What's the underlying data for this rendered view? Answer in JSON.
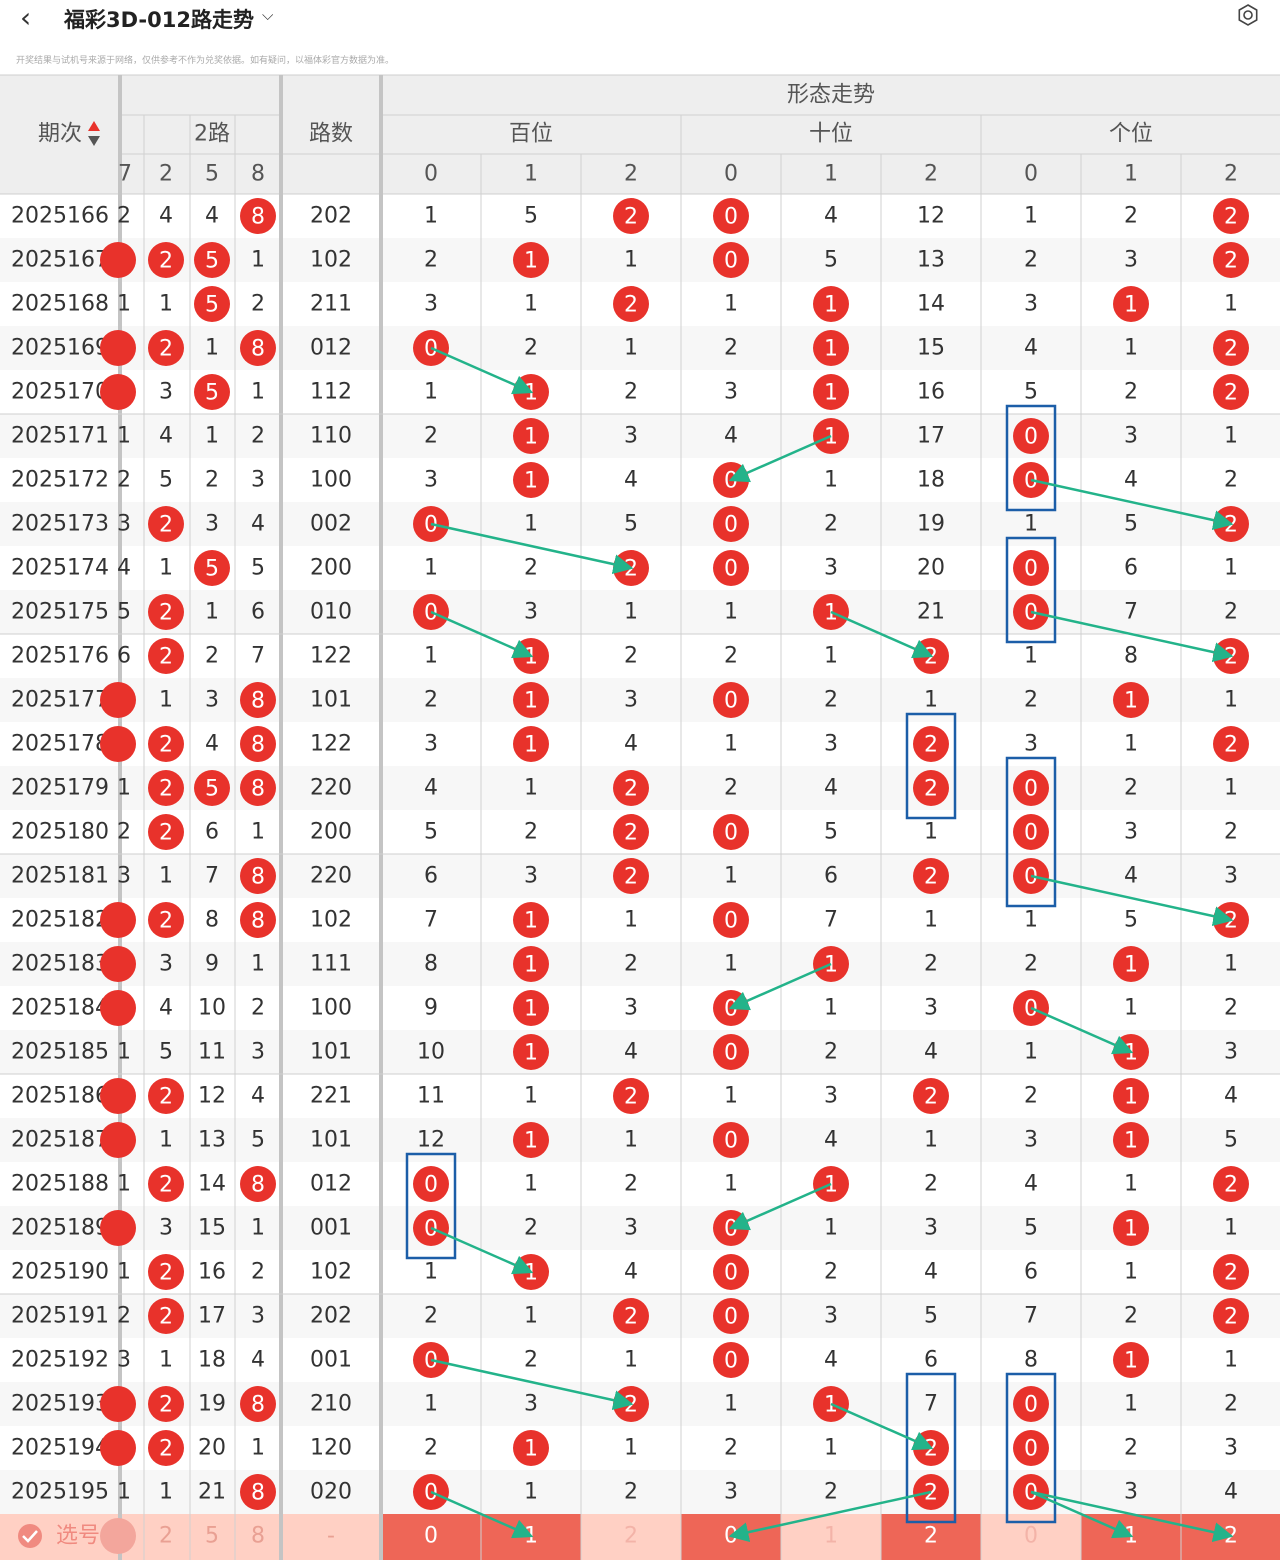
{
  "header": {
    "back_icon": "chevron-left-icon",
    "title": "福彩3D-012路走势",
    "title_dropdown_icon": "chevron-down-icon",
    "settings_icon": "settings-icon"
  },
  "disclaimer": "开奖结果与试机号来源于网络，仅供参考不作为兑奖依据。如有疑问，以福体彩官方数据为准。",
  "table": {
    "period_header": "期次",
    "sort_icon": "sort-icon",
    "group_2lu": "2路",
    "group_2lu_cols": [
      "2",
      "5",
      "8"
    ],
    "lushu_header": "路数",
    "trend_header": "形态走势",
    "positions": [
      "百位",
      "十位",
      "个位"
    ],
    "digit_cols": [
      "0",
      "1",
      "2"
    ],
    "partial_col_header": "7",
    "rows": [
      {
        "p": "2025166",
        "e": "2",
        "a": [
          "4",
          "4",
          "8"
        ],
        "r": "202",
        "b": [
          "1",
          "5",
          "2"
        ],
        "s": [
          "0",
          "4",
          "12"
        ],
        "g": [
          "1",
          "2",
          "2"
        ]
      },
      {
        "p": "2025167",
        "e": "7",
        "a": [
          "2",
          "5",
          "1"
        ],
        "r": "102",
        "b": [
          "2",
          "1",
          "1"
        ],
        "s": [
          "0",
          "5",
          "13"
        ],
        "g": [
          "2",
          "3",
          "2"
        ]
      },
      {
        "p": "2025168",
        "e": "1",
        "a": [
          "1",
          "5",
          "2"
        ],
        "r": "211",
        "b": [
          "3",
          "1",
          "2"
        ],
        "s": [
          "1",
          "1",
          "14"
        ],
        "g": [
          "3",
          "1",
          "1"
        ]
      },
      {
        "p": "2025169",
        "e": "7",
        "a": [
          "2",
          "1",
          "8"
        ],
        "r": "012",
        "b": [
          "0",
          "2",
          "1"
        ],
        "s": [
          "2",
          "1",
          "15"
        ],
        "g": [
          "4",
          "1",
          "2"
        ]
      },
      {
        "p": "2025170",
        "e": "7",
        "a": [
          "3",
          "5",
          "1"
        ],
        "r": "112",
        "b": [
          "1",
          "1",
          "2"
        ],
        "s": [
          "3",
          "1",
          "16"
        ],
        "g": [
          "5",
          "2",
          "2"
        ]
      },
      {
        "p": "2025171",
        "e": "1",
        "a": [
          "4",
          "1",
          "2"
        ],
        "r": "110",
        "b": [
          "2",
          "1",
          "3"
        ],
        "s": [
          "4",
          "1",
          "17"
        ],
        "g": [
          "0",
          "3",
          "1"
        ]
      },
      {
        "p": "2025172",
        "e": "2",
        "a": [
          "5",
          "2",
          "3"
        ],
        "r": "100",
        "b": [
          "3",
          "1",
          "4"
        ],
        "s": [
          "0",
          "1",
          "18"
        ],
        "g": [
          "0",
          "4",
          "2"
        ]
      },
      {
        "p": "2025173",
        "e": "3",
        "a": [
          "2",
          "3",
          "4"
        ],
        "r": "002",
        "b": [
          "0",
          "1",
          "5"
        ],
        "s": [
          "0",
          "2",
          "19"
        ],
        "g": [
          "1",
          "5",
          "2"
        ]
      },
      {
        "p": "2025174",
        "e": "4",
        "a": [
          "1",
          "5",
          "5"
        ],
        "r": "200",
        "b": [
          "1",
          "2",
          "2"
        ],
        "s": [
          "0",
          "3",
          "20"
        ],
        "g": [
          "0",
          "6",
          "1"
        ]
      },
      {
        "p": "2025175",
        "e": "5",
        "a": [
          "2",
          "1",
          "6"
        ],
        "r": "010",
        "b": [
          "0",
          "3",
          "1"
        ],
        "s": [
          "1",
          "1",
          "21"
        ],
        "g": [
          "0",
          "7",
          "2"
        ]
      },
      {
        "p": "2025176",
        "e": "6",
        "a": [
          "2",
          "2",
          "7"
        ],
        "r": "122",
        "b": [
          "1",
          "1",
          "2"
        ],
        "s": [
          "2",
          "1",
          "2"
        ],
        "g": [
          "1",
          "8",
          "2"
        ]
      },
      {
        "p": "2025177",
        "e": "7",
        "a": [
          "1",
          "3",
          "8"
        ],
        "r": "101",
        "b": [
          "2",
          "1",
          "3"
        ],
        "s": [
          "0",
          "2",
          "1"
        ],
        "g": [
          "2",
          "1",
          "1"
        ]
      },
      {
        "p": "2025178",
        "e": "7",
        "a": [
          "2",
          "4",
          "8"
        ],
        "r": "122",
        "b": [
          "3",
          "1",
          "4"
        ],
        "s": [
          "1",
          "3",
          "2"
        ],
        "g": [
          "3",
          "1",
          "2"
        ]
      },
      {
        "p": "2025179",
        "e": "1",
        "a": [
          "2",
          "5",
          "8"
        ],
        "r": "220",
        "b": [
          "4",
          "1",
          "2"
        ],
        "s": [
          "2",
          "4",
          "2"
        ],
        "g": [
          "0",
          "2",
          "1"
        ]
      },
      {
        "p": "2025180",
        "e": "2",
        "a": [
          "2",
          "6",
          "1"
        ],
        "r": "200",
        "b": [
          "5",
          "2",
          "2"
        ],
        "s": [
          "0",
          "5",
          "1"
        ],
        "g": [
          "0",
          "3",
          "2"
        ]
      },
      {
        "p": "2025181",
        "e": "3",
        "a": [
          "1",
          "7",
          "8"
        ],
        "r": "220",
        "b": [
          "6",
          "3",
          "2"
        ],
        "s": [
          "1",
          "6",
          "2"
        ],
        "g": [
          "0",
          "4",
          "3"
        ]
      },
      {
        "p": "2025182",
        "e": "7",
        "a": [
          "2",
          "8",
          "8"
        ],
        "r": "102",
        "b": [
          "7",
          "1",
          "1"
        ],
        "s": [
          "0",
          "7",
          "1"
        ],
        "g": [
          "1",
          "5",
          "2"
        ]
      },
      {
        "p": "2025183",
        "e": "7",
        "a": [
          "3",
          "9",
          "1"
        ],
        "r": "111",
        "b": [
          "8",
          "1",
          "2"
        ],
        "s": [
          "1",
          "1",
          "2"
        ],
        "g": [
          "2",
          "1",
          "1"
        ]
      },
      {
        "p": "2025184",
        "e": "7",
        "a": [
          "4",
          "10",
          "2"
        ],
        "r": "100",
        "b": [
          "9",
          "1",
          "3"
        ],
        "s": [
          "0",
          "1",
          "3"
        ],
        "g": [
          "0",
          "1",
          "2"
        ]
      },
      {
        "p": "2025185",
        "e": "1",
        "a": [
          "5",
          "11",
          "3"
        ],
        "r": "101",
        "b": [
          "10",
          "1",
          "4"
        ],
        "s": [
          "0",
          "2",
          "4"
        ],
        "g": [
          "1",
          "1",
          "3"
        ]
      },
      {
        "p": "2025186",
        "e": "7",
        "a": [
          "2",
          "12",
          "4"
        ],
        "r": "221",
        "b": [
          "11",
          "1",
          "2"
        ],
        "s": [
          "1",
          "3",
          "2"
        ],
        "g": [
          "2",
          "1",
          "4"
        ]
      },
      {
        "p": "2025187",
        "e": "7",
        "a": [
          "1",
          "13",
          "5"
        ],
        "r": "101",
        "b": [
          "12",
          "1",
          "1"
        ],
        "s": [
          "0",
          "4",
          "1"
        ],
        "g": [
          "3",
          "1",
          "5"
        ]
      },
      {
        "p": "2025188",
        "e": "1",
        "a": [
          "2",
          "14",
          "8"
        ],
        "r": "012",
        "b": [
          "0",
          "1",
          "2"
        ],
        "s": [
          "1",
          "1",
          "2"
        ],
        "g": [
          "4",
          "1",
          "2"
        ]
      },
      {
        "p": "2025189",
        "e": "7",
        "a": [
          "3",
          "15",
          "1"
        ],
        "r": "001",
        "b": [
          "0",
          "2",
          "3"
        ],
        "s": [
          "0",
          "1",
          "3"
        ],
        "g": [
          "5",
          "1",
          "1"
        ]
      },
      {
        "p": "2025190",
        "e": "1",
        "a": [
          "2",
          "16",
          "2"
        ],
        "r": "102",
        "b": [
          "1",
          "1",
          "4"
        ],
        "s": [
          "0",
          "2",
          "4"
        ],
        "g": [
          "6",
          "1",
          "2"
        ]
      },
      {
        "p": "2025191",
        "e": "2",
        "a": [
          "2",
          "17",
          "3"
        ],
        "r": "202",
        "b": [
          "2",
          "1",
          "2"
        ],
        "s": [
          "0",
          "3",
          "5"
        ],
        "g": [
          "7",
          "2",
          "2"
        ]
      },
      {
        "p": "2025192",
        "e": "3",
        "a": [
          "1",
          "18",
          "4"
        ],
        "r": "001",
        "b": [
          "0",
          "2",
          "1"
        ],
        "s": [
          "0",
          "4",
          "6"
        ],
        "g": [
          "8",
          "1",
          "1"
        ]
      },
      {
        "p": "2025193",
        "e": "7",
        "a": [
          "2",
          "19",
          "8"
        ],
        "r": "210",
        "b": [
          "1",
          "3",
          "2"
        ],
        "s": [
          "1",
          "1",
          "7"
        ],
        "g": [
          "0",
          "1",
          "2"
        ]
      },
      {
        "p": "2025194",
        "e": "7",
        "a": [
          "2",
          "20",
          "1"
        ],
        "r": "120",
        "b": [
          "2",
          "1",
          "1"
        ],
        "s": [
          "2",
          "1",
          "2"
        ],
        "g": [
          "0",
          "2",
          "3"
        ]
      },
      {
        "p": "2025195",
        "e": "1",
        "a": [
          "1",
          "21",
          "8"
        ],
        "r": "020",
        "b": [
          "0",
          "1",
          "2"
        ],
        "s": [
          "3",
          "2",
          "2"
        ],
        "g": [
          "0",
          "3",
          "4"
        ]
      }
    ],
    "select_row": {
      "check_icon": "checkmark-icon",
      "label": "选号",
      "e": "7",
      "a": [
        "2",
        "5",
        "8"
      ],
      "r": "-",
      "digits": [
        "0",
        "1",
        "2",
        "0",
        "1",
        "2",
        "0",
        "1",
        "2"
      ],
      "active": [
        true,
        true,
        false,
        true,
        false,
        true,
        false,
        true,
        true
      ]
    }
  },
  "colors": {
    "ball": "#e8322b",
    "arrow": "#23b38a",
    "box": "#1c5ea8",
    "header_bg": "#eeeeee",
    "stripe": "#f7f7f7",
    "select_bg": "#ffd0c4",
    "select_active": "#ee6657"
  }
}
